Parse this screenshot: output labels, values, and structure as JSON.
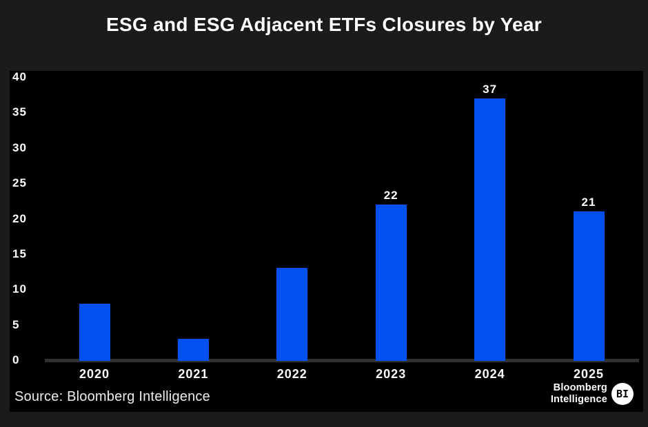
{
  "title": "ESG and ESG Adjacent ETFs Closures by Year",
  "source": "Source: Bloomberg Intelligence",
  "logo": {
    "line1": "Bloomberg",
    "line2": "Intelligence",
    "badge": "BI"
  },
  "colors": {
    "page_background": "#1b1b1b",
    "plot_background": "#000000",
    "bar": "#0350f0",
    "axis_line": "#303030",
    "text": "#ffffff"
  },
  "chart_data": {
    "type": "bar",
    "title": "ESG and ESG Adjacent ETFs Closures by Year",
    "categories": [
      "2020",
      "2021",
      "2022",
      "2023",
      "2024",
      "2025"
    ],
    "values": [
      8,
      3,
      13,
      22,
      37,
      21
    ],
    "data_labels_shown": [
      false,
      false,
      false,
      true,
      true,
      true
    ],
    "data_labels": [
      "",
      "",
      "",
      "22",
      "37",
      "21"
    ],
    "xlabel": "",
    "ylabel": "",
    "ylim": [
      0,
      40
    ],
    "yticks": [
      0,
      5,
      10,
      15,
      20,
      25,
      30,
      35,
      40
    ],
    "grid": false,
    "legend": false,
    "bar_color": "#0350f0",
    "source": "Source: Bloomberg Intelligence"
  }
}
